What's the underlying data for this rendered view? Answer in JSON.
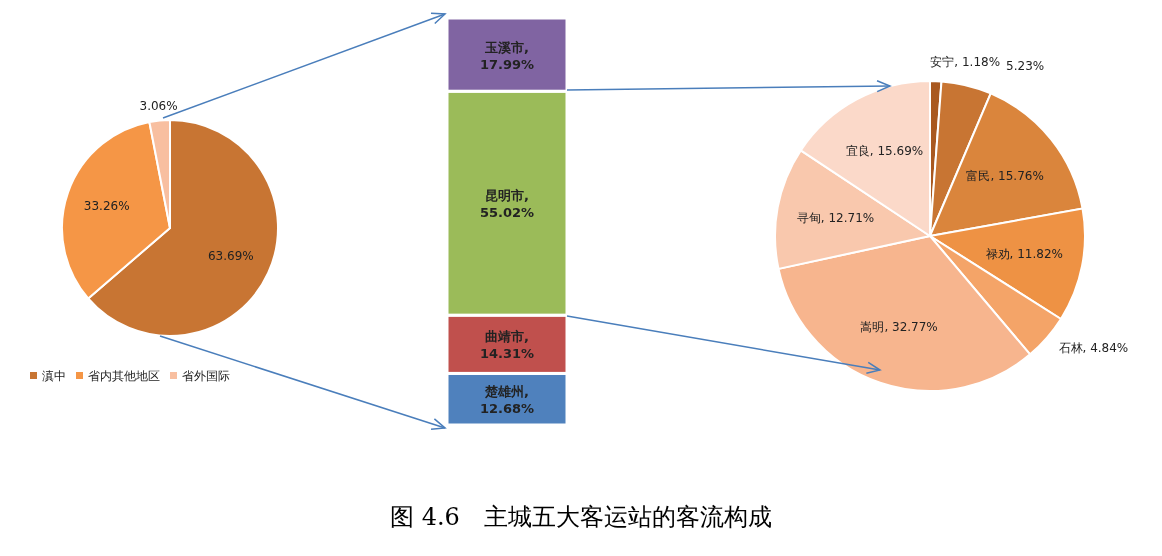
{
  "chart_data": [
    {
      "type": "pie",
      "categories": [
        "滇中",
        "省内其他地区",
        "省外国际"
      ],
      "values": [
        63.69,
        33.26,
        3.06
      ],
      "value_labels": [
        "63.69%",
        "33.26%",
        "3.06%"
      ],
      "colors": [
        "#c87533",
        "#f59646",
        "#f8bfa0"
      ],
      "legend": "bottom"
    },
    {
      "type": "bar",
      "stacked": true,
      "categories": [
        null
      ],
      "title": "图 4.6　主城五大客运站的客流构成",
      "series": [
        {
          "name": "楚雄州,",
          "color": "#4f81bd",
          "values": [
            12.68
          ],
          "value_labels": [
            "12.68%"
          ]
        },
        {
          "name": "曲靖市,",
          "color": "#c0504d",
          "values": [
            14.31
          ],
          "value_labels": [
            "14.31%"
          ]
        },
        {
          "name": "昆明市,",
          "color": "#9bbb59",
          "values": [
            55.02
          ],
          "value_labels": [
            "55.02%"
          ]
        },
        {
          "name": "玉溪市,",
          "color": "#8064a2",
          "values": [
            17.99
          ],
          "value_labels": [
            "17.99%"
          ]
        }
      ]
    },
    {
      "type": "pie",
      "categories": [
        "安宁",
        null,
        "富民",
        "禄劝",
        "石林",
        "嵩明",
        "寻甸",
        "宜良"
      ],
      "values": [
        1.18,
        5.23,
        15.76,
        11.82,
        4.84,
        32.77,
        12.71,
        15.69
      ],
      "value_labels": [
        "1.18%",
        "5.23%",
        "15.76%",
        "11.82%",
        "4.84%",
        "32.77%",
        "12.71%",
        "15.69%"
      ],
      "colors": [
        "#a9581f",
        "#c87533",
        "#da853c",
        "#ee9244",
        "#f4a468",
        "#f7b58e",
        "#f9c8ad",
        "#fbd9c9"
      ]
    }
  ]
}
